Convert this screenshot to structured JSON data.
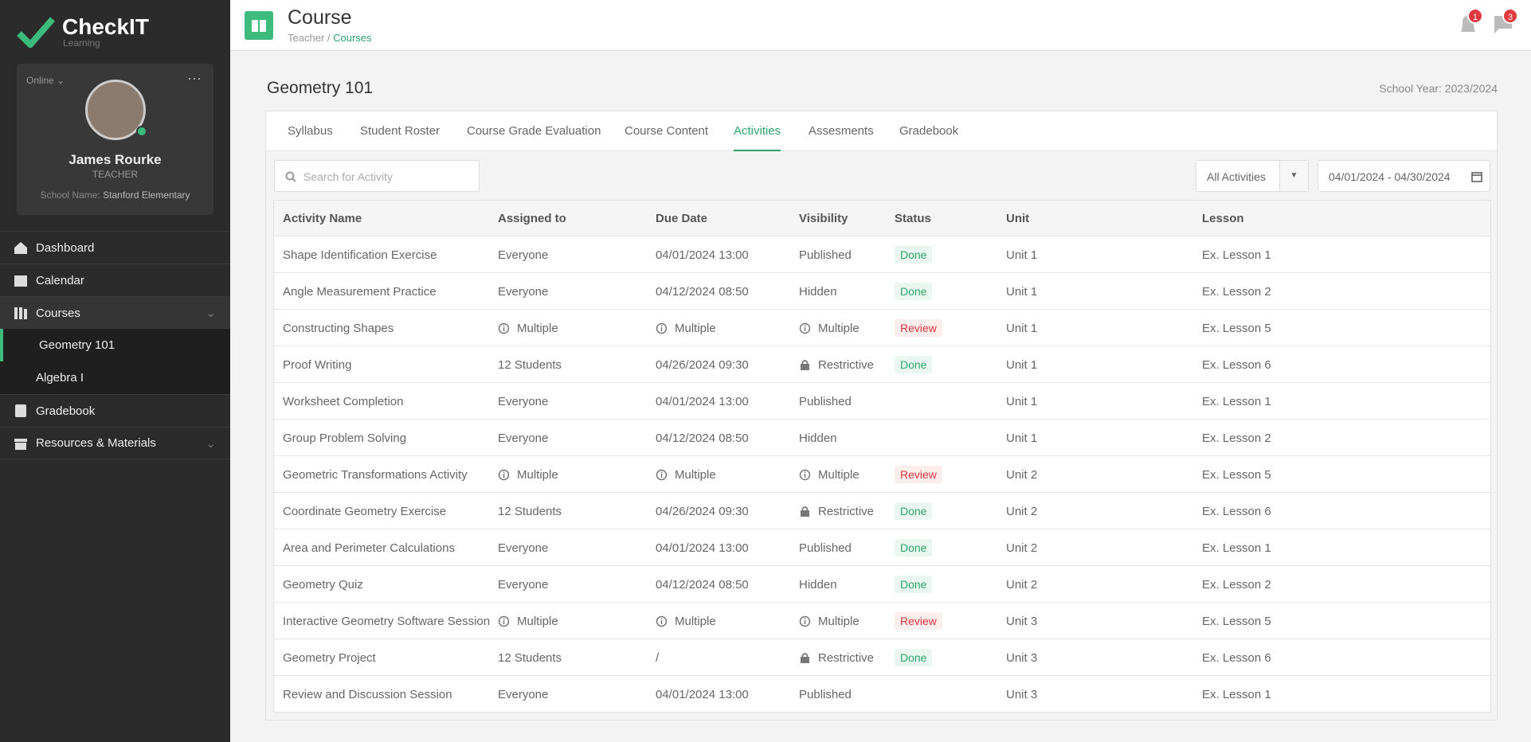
{
  "sidebar": {
    "logo": "CheckIT",
    "logo_subtitle": "Learning",
    "status": "Online",
    "user_name": "James Rourke",
    "role": "TEACHER",
    "school_label": "School Name:",
    "school_name": "Stanford Elementary",
    "nav": [
      "Dashboard",
      "Calendar",
      "Courses",
      "Geometry 101",
      "Algebra I",
      "Gradebook",
      "Resources & Materials"
    ]
  },
  "header": {
    "title": "Course",
    "breadcrumb": [
      "Teacher",
      "Courses"
    ],
    "breadcrumb_separator": "/",
    "notifications": "1",
    "messages": "3"
  },
  "course": {
    "title": "Geometry 101",
    "school_year": "School Year: 2023/2024",
    "tabs": [
      "Syllabus",
      "Student Roster",
      "Course Grade Evaluation",
      "Course Content",
      "Activities",
      "Assesments",
      "Gradebook"
    ],
    "search_placeholder": "Search for Activity",
    "filter": "All Activities",
    "date_range": "04/01/2024 - 04/30/2024"
  },
  "table": {
    "columns": [
      "Activity Name",
      "Assigned to",
      "Due Date",
      "Visibility",
      "Status",
      "Unit",
      "Lesson"
    ],
    "rows": [
      [
        "Shape Identification Exercise",
        "Everyone",
        "04/01/2024 13:00",
        "Published",
        "Done",
        "Unit 1",
        "Ex. Lesson 1"
      ],
      [
        "Angle Measurement Practice",
        "Everyone",
        "04/12/2024 08:50",
        "Hidden",
        "Done",
        "Unit 1",
        "Ex. Lesson 2"
      ],
      [
        "Constructing Shapes",
        "Multiple",
        "Multiple",
        "Multiple",
        "Review",
        "Unit 1",
        "Ex. Lesson 5"
      ],
      [
        "Proof Writing",
        "12 Students",
        "04/26/2024 09:30",
        "Restrictive",
        "Done",
        "Unit 1",
        "Ex. Lesson 6"
      ],
      [
        "Worksheet Completion",
        "Everyone",
        "04/01/2024 13:00",
        "Published",
        null,
        "Unit 1",
        "Ex. Lesson 1"
      ],
      [
        "Group Problem Solving",
        "Everyone",
        "04/12/2024 08:50",
        "Hidden",
        null,
        "Unit 1",
        "Ex. Lesson 2"
      ],
      [
        "Geometric Transformations Activity",
        "Multiple",
        "Multiple",
        "Multiple",
        "Review",
        "Unit 2",
        "Ex. Lesson 5"
      ],
      [
        "Coordinate Geometry Exercise",
        "12 Students",
        "04/26/2024 09:30",
        "Restrictive",
        "Done",
        "Unit 2",
        "Ex. Lesson 6"
      ],
      [
        "Area and Perimeter Calculations",
        "Everyone",
        "04/01/2024 13:00",
        "Published",
        "Done",
        "Unit 2",
        "Ex. Lesson 1"
      ],
      [
        "Geometry Quiz",
        "Everyone",
        "04/12/2024 08:50",
        "Hidden",
        "Done",
        "Unit 2",
        "Ex. Lesson 2"
      ],
      [
        "Interactive Geometry Software Session",
        "Multiple",
        "Multiple",
        "Multiple",
        "Review",
        "Unit 3",
        "Ex. Lesson 5"
      ],
      [
        "Geometry Project",
        "12 Students",
        "/",
        "Restrictive",
        "Done",
        "Unit 3",
        "Ex. Lesson 6"
      ],
      [
        "Review and Discussion Session",
        "Everyone",
        "04/01/2024 13:00",
        "Published",
        null,
        "Unit 3",
        "Ex. Lesson 1"
      ]
    ]
  }
}
